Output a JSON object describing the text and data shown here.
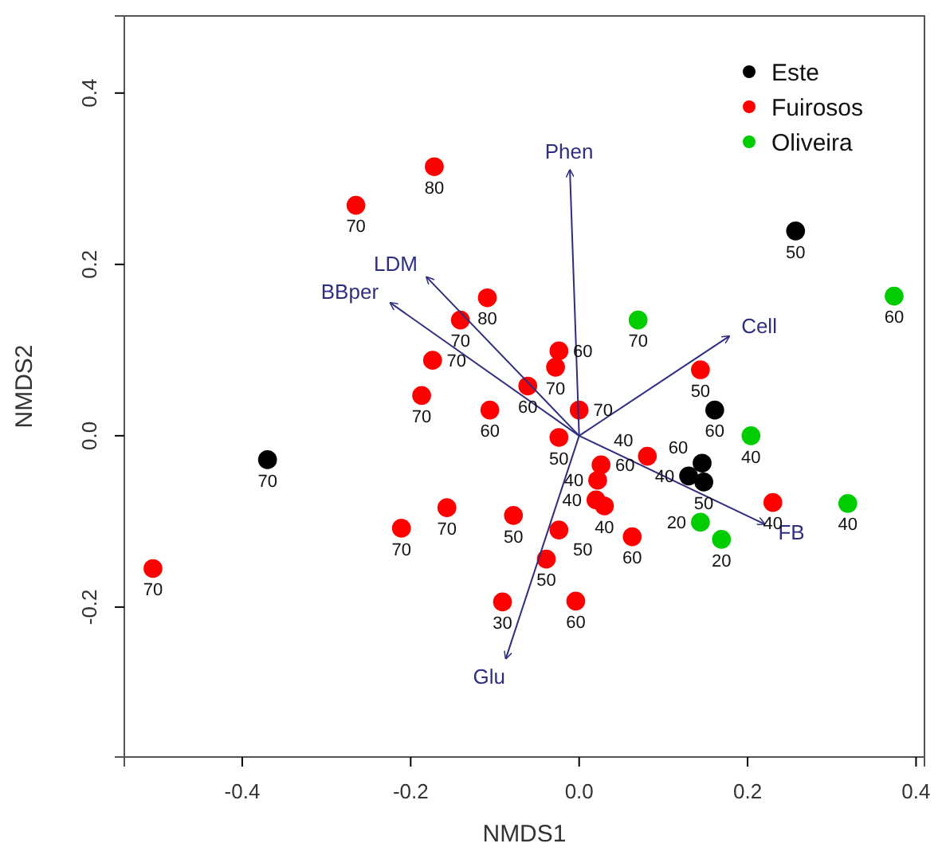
{
  "chart_data": {
    "type": "scatter",
    "xlabel": "NMDS1",
    "ylabel": "NMDS2",
    "xlim": [
      -0.54,
      0.41
    ],
    "ylim": [
      -0.375,
      0.49
    ],
    "xticks": [
      -0.4,
      -0.2,
      {
        "value": 0,
        "label": "0.0"
      },
      0.2,
      0.4
    ],
    "yticks": [
      -0.2,
      {
        "value": 0,
        "label": "0.0"
      },
      0.2,
      0.4
    ],
    "grid": false,
    "legend": "top right",
    "marker": "circle",
    "series": [
      {
        "name": "Este",
        "color": "#000000",
        "x": [
          -0.37,
          0.257,
          0.161,
          0.146,
          0.13,
          0.148
        ],
        "values": [
          -0.028,
          0.239,
          0.03,
          -0.032,
          -0.047,
          -0.054
        ]
      },
      {
        "name": "Fuirosos",
        "color": "#ff0000",
        "x": [
          -0.172,
          -0.265,
          -0.141,
          -0.174,
          -0.187,
          -0.109,
          -0.061,
          -0.024,
          -0.028,
          0.0,
          -0.106,
          0.144,
          -0.024,
          0.026,
          0.022,
          0.081,
          0.02,
          0.03,
          -0.078,
          -0.024,
          0.063,
          0.23,
          -0.039,
          -0.004,
          -0.091,
          -0.506,
          -0.211,
          -0.157
        ],
        "values": [
          0.314,
          0.269,
          0.135,
          0.088,
          0.047,
          0.161,
          0.058,
          0.099,
          0.08,
          0.03,
          0.03,
          0.077,
          -0.002,
          -0.034,
          -0.052,
          -0.024,
          -0.075,
          -0.082,
          -0.093,
          -0.11,
          -0.118,
          -0.078,
          -0.144,
          -0.193,
          -0.194,
          -0.155,
          -0.108,
          -0.084
        ]
      },
      {
        "name": "Oliveira",
        "color": "#00cc00",
        "x": [
          0.07,
          0.374,
          0.204,
          0.319,
          0.144,
          0.169
        ],
        "values": [
          0.135,
          0.163,
          0.0,
          -0.079,
          -0.101,
          -0.121
        ]
      },
      {
        "type": "line",
        "marker": "none",
        "name": "Phen",
        "color": "#2e2e80",
        "x": [
          0,
          -0.011
        ],
        "values": [
          0,
          0.31
        ]
      },
      {
        "type": "line",
        "marker": "none",
        "name": "LDM",
        "color": "#2e2e80",
        "x": [
          0,
          -0.181
        ],
        "values": [
          0,
          0.185
        ]
      },
      {
        "type": "line",
        "marker": "none",
        "name": "BBper",
        "color": "#2e2e80",
        "x": [
          0,
          -0.224
        ],
        "values": [
          0,
          0.155
        ]
      },
      {
        "type": "line",
        "marker": "none",
        "name": "Cell",
        "color": "#2e2e80",
        "x": [
          0,
          0.178
        ],
        "values": [
          0,
          0.116
        ]
      },
      {
        "type": "line",
        "marker": "none",
        "name": "FB",
        "color": "#2e2e80",
        "x": [
          0,
          0.22
        ],
        "values": [
          0,
          -0.103
        ]
      },
      {
        "type": "line",
        "marker": "none",
        "name": "Glu",
        "color": "#2e2e80",
        "x": [
          0,
          -0.087
        ],
        "values": [
          0,
          -0.26
        ]
      }
    ],
    "annotations": [
      {
        "text": "70",
        "x": -0.37,
        "y": -0.028
      },
      {
        "text": "50",
        "x": 0.257,
        "y": 0.239
      },
      {
        "text": "60",
        "x": 0.161,
        "y": 0.03
      },
      {
        "text": "60",
        "x": 0.146,
        "y": -0.032
      },
      {
        "text": "40",
        "x": 0.13,
        "y": -0.047
      },
      {
        "text": "50",
        "x": 0.148,
        "y": -0.054
      },
      {
        "text": "80",
        "x": -0.172,
        "y": 0.314
      },
      {
        "text": "70",
        "x": -0.265,
        "y": 0.269
      },
      {
        "text": "70",
        "x": -0.141,
        "y": 0.135
      },
      {
        "text": "70",
        "x": -0.174,
        "y": 0.088
      },
      {
        "text": "70",
        "x": -0.187,
        "y": 0.047
      },
      {
        "text": "80",
        "x": -0.109,
        "y": 0.161
      },
      {
        "text": "60",
        "x": -0.061,
        "y": 0.058
      },
      {
        "text": "60",
        "x": -0.024,
        "y": 0.099
      },
      {
        "text": "70",
        "x": -0.028,
        "y": 0.08
      },
      {
        "text": "70",
        "x": 0.0,
        "y": 0.03
      },
      {
        "text": "60",
        "x": -0.106,
        "y": 0.03
      },
      {
        "text": "50",
        "x": 0.144,
        "y": 0.077
      },
      {
        "text": "50",
        "x": -0.024,
        "y": -0.002
      },
      {
        "text": "60",
        "x": 0.026,
        "y": -0.034
      },
      {
        "text": "40",
        "x": 0.022,
        "y": -0.052
      },
      {
        "text": "40",
        "x": 0.081,
        "y": -0.024
      },
      {
        "text": "40",
        "x": 0.02,
        "y": -0.075
      },
      {
        "text": "40",
        "x": 0.03,
        "y": -0.082
      },
      {
        "text": "50",
        "x": -0.078,
        "y": -0.093
      },
      {
        "text": "50",
        "x": -0.024,
        "y": -0.11
      },
      {
        "text": "60",
        "x": 0.063,
        "y": -0.118
      },
      {
        "text": "40",
        "x": 0.23,
        "y": -0.078
      },
      {
        "text": "50",
        "x": -0.039,
        "y": -0.144
      },
      {
        "text": "60",
        "x": -0.004,
        "y": -0.193
      },
      {
        "text": "30",
        "x": -0.091,
        "y": -0.194
      },
      {
        "text": "70",
        "x": -0.506,
        "y": -0.155
      },
      {
        "text": "70",
        "x": -0.211,
        "y": -0.108
      },
      {
        "text": "70",
        "x": -0.157,
        "y": -0.084
      },
      {
        "text": "70",
        "x": 0.07,
        "y": 0.135
      },
      {
        "text": "60",
        "x": 0.374,
        "y": 0.163
      },
      {
        "text": "40",
        "x": 0.204,
        "y": 0.0
      },
      {
        "text": "40",
        "x": 0.319,
        "y": -0.079
      },
      {
        "text": "20",
        "x": 0.144,
        "y": -0.101
      },
      {
        "text": "20",
        "x": 0.169,
        "y": -0.121
      }
    ]
  }
}
